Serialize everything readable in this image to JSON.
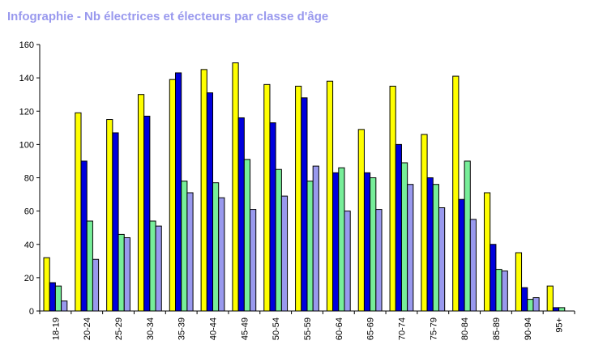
{
  "chart_data": {
    "type": "bar",
    "title": "Infographie - Nb électrices et électeurs par classe d'âge",
    "categories": [
      "18-19",
      "20-24",
      "25-29",
      "30-34",
      "35-39",
      "40-44",
      "45-49",
      "50-54",
      "55-59",
      "60-64",
      "65-69",
      "70-74",
      "75-79",
      "80-84",
      "85-89",
      "90-94",
      "95+"
    ],
    "series": [
      {
        "color": "#ffff00",
        "values": [
          32,
          119,
          115,
          130,
          139,
          145,
          149,
          136,
          135,
          138,
          109,
          135,
          106,
          141,
          71,
          35,
          15
        ]
      },
      {
        "color": "#0000dd",
        "values": [
          17,
          90,
          107,
          117,
          143,
          131,
          116,
          113,
          128,
          83,
          83,
          100,
          80,
          67,
          40,
          14,
          2
        ]
      },
      {
        "color": "#77ee99",
        "values": [
          15,
          54,
          46,
          54,
          78,
          77,
          91,
          85,
          78,
          86,
          80,
          89,
          76,
          90,
          25,
          7,
          2
        ]
      },
      {
        "color": "#9999ee",
        "values": [
          6,
          31,
          44,
          51,
          71,
          68,
          61,
          69,
          87,
          60,
          61,
          76,
          62,
          55,
          24,
          8,
          0
        ]
      }
    ],
    "ylim": [
      0,
      160
    ],
    "yticks": [
      0,
      20,
      40,
      60,
      80,
      100,
      120,
      140,
      160
    ],
    "grid": false,
    "legend": "none",
    "title_color": "#9999ee"
  }
}
